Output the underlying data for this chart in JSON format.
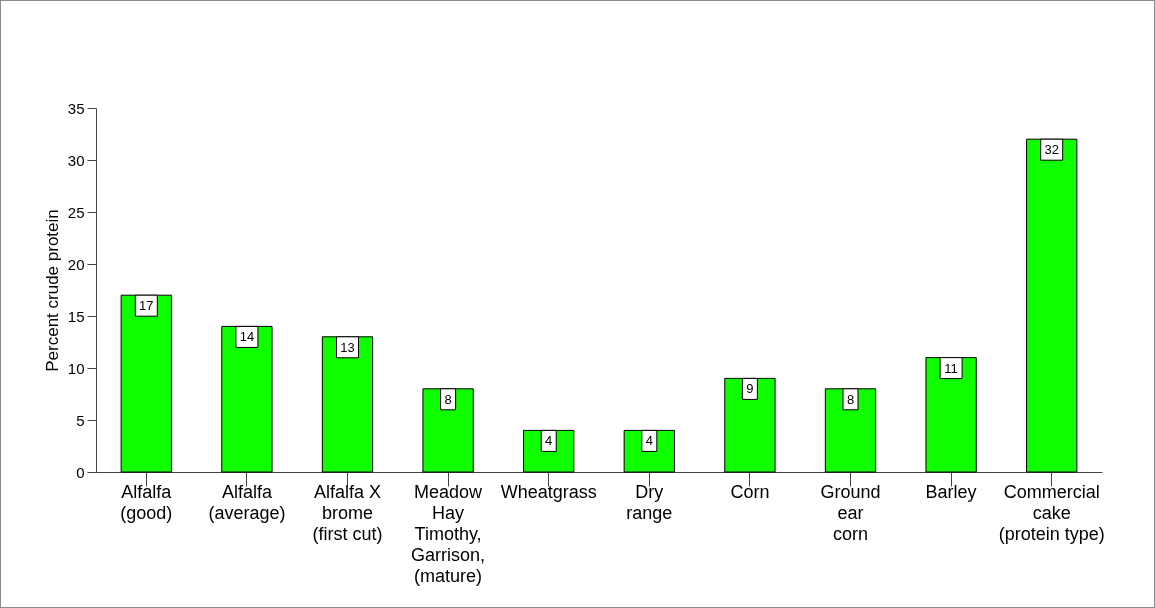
{
  "chart_data": {
    "type": "bar",
    "categories": [
      "Alfalfa\n(good)",
      "Alfalfa\n(average)",
      "Alfalfa X\nbrome\n(first cut)",
      "Meadow\nHay\nTimothy,\nGarrison,\n(mature)",
      "Wheatgrass",
      "Dry\nrange",
      "Corn",
      "Ground\near\ncorn",
      "Barley",
      "Commercial\ncake\n(protein type)"
    ],
    "values": [
      17,
      14,
      13,
      8,
      4,
      4,
      9,
      8,
      11,
      32
    ],
    "color": "#10ff00",
    "ylabel": "Percent crude protein",
    "ylim": [
      0,
      35
    ],
    "yticks": [
      0,
      5,
      10,
      15,
      20,
      25,
      30,
      35
    ],
    "grid": false,
    "data_labels": true
  }
}
